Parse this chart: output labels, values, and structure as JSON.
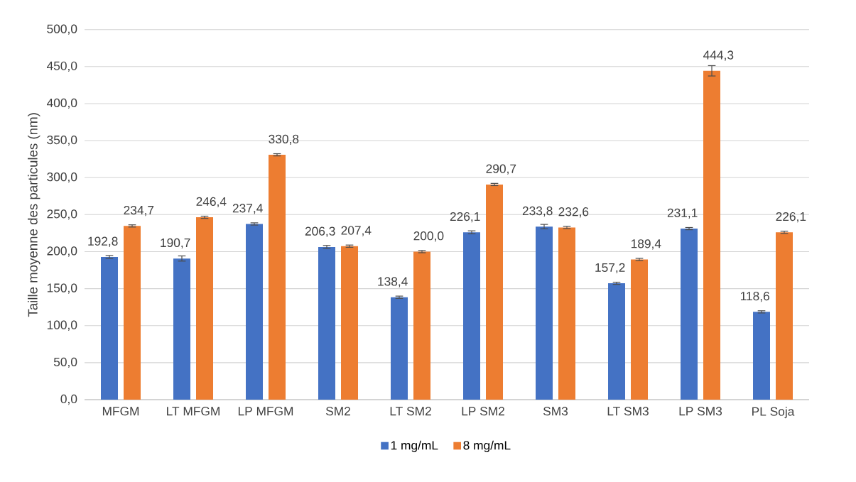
{
  "chart_data": {
    "type": "bar",
    "ylabel": "Taille moyenne des particules (nm)",
    "categories": [
      "MFGM",
      "LT MFGM",
      "LP MFGM",
      "SM2",
      "LT SM2",
      "LP SM2",
      "SM3",
      "LT SM3",
      "LP SM3",
      "PL Soja"
    ],
    "series": [
      {
        "name": "1 mg/mL",
        "color": "#4472c4",
        "values": [
          192.8,
          190.7,
          237.4,
          206.3,
          138.4,
          226.1,
          233.8,
          157.2,
          231.1,
          118.6
        ],
        "errors": [
          2,
          3.5,
          1.5,
          2,
          1.5,
          2,
          3,
          1.5,
          1.5,
          1.5
        ],
        "value_labels": [
          "192,8",
          "190,7",
          "237,4",
          "206,3",
          "138,4",
          "226,1",
          "233,8",
          "157,2",
          "231,1",
          "118,6"
        ]
      },
      {
        "name": "8 mg/mL",
        "color": "#ed7d31",
        "values": [
          234.7,
          246.4,
          330.8,
          207.4,
          200.0,
          290.7,
          232.6,
          189.4,
          444.3,
          226.1
        ],
        "errors": [
          1.5,
          1.5,
          1.5,
          1.5,
          1.5,
          1.5,
          1.5,
          1.5,
          7,
          1.5
        ],
        "value_labels": [
          "234,7",
          "246,4",
          "330,8",
          "207,4",
          "200,0",
          "290,7",
          "232,6",
          "189,4",
          "444,3",
          "226,1"
        ]
      }
    ],
    "ylim": [
      0,
      500
    ],
    "yticks": [
      {
        "value": 0,
        "label": "0,0"
      },
      {
        "value": 50,
        "label": "50,0"
      },
      {
        "value": 100,
        "label": "100,0"
      },
      {
        "value": 150,
        "label": "150,0"
      },
      {
        "value": 200,
        "label": "200,0"
      },
      {
        "value": 250,
        "label": "250,0"
      },
      {
        "value": 300,
        "label": "300,0"
      },
      {
        "value": 350,
        "label": "350,0"
      },
      {
        "value": 400,
        "label": "400,0"
      },
      {
        "value": 450,
        "label": "450,0"
      },
      {
        "value": 500,
        "label": "500,0"
      }
    ],
    "grid": "y",
    "legend": "bottom"
  }
}
